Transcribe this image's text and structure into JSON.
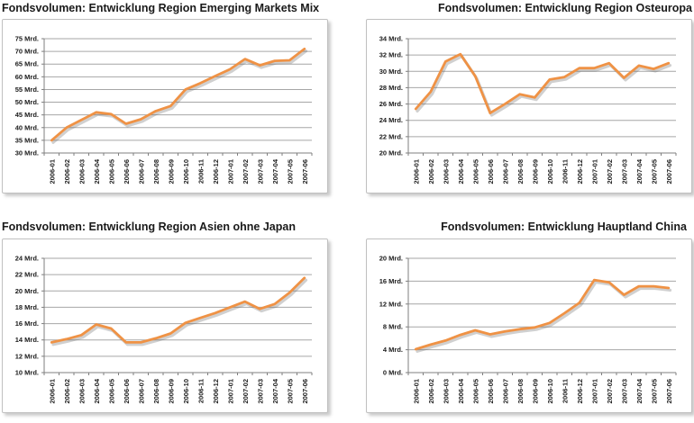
{
  "styles": {
    "background": "#FFFFFF",
    "line_color": "#EF9245",
    "line_shadow": "rgba(100,100,100,0.30)",
    "grid_color": "#A6A6A6",
    "axis_color": "#7F7F7F",
    "text_color": "#1A1A1A",
    "box_border": "#C0C0C0"
  },
  "chart_data": [
    {
      "type": "line",
      "title": "Fondsvolumen: Entwicklung Region Emerging Markets Mix",
      "title_align": "left",
      "x": [
        "2006-01",
        "2006-02",
        "2006-03",
        "2006-04",
        "2006-05",
        "2006-06",
        "2006-07",
        "2006-08",
        "2006-09",
        "2006-10",
        "2006-11",
        "2006-12",
        "2007-01",
        "2007-02",
        "2007-03",
        "2007-04",
        "2007-05",
        "2007-06"
      ],
      "values": [
        35,
        40,
        43,
        46,
        45.3,
        41.5,
        43.3,
        46.5,
        48.5,
        55,
        57.5,
        60.3,
        63,
        67,
        64.5,
        66.3,
        66.5,
        71
      ],
      "ylim": [
        30,
        75
      ],
      "yticks": [
        30,
        35,
        40,
        45,
        50,
        55,
        60,
        65,
        70,
        75
      ],
      "unit": "Mrd.",
      "grid": true,
      "legend": false
    },
    {
      "type": "line",
      "title": "Fondsvolumen: Entwicklung Region Osteuropa",
      "title_align": "right",
      "x": [
        "2006-01",
        "2006-02",
        "2006-03",
        "2006-04",
        "2006-05",
        "2006-06",
        "2006-07",
        "2006-08",
        "2006-09",
        "2006-10",
        "2006-11",
        "2006-12",
        "2007-01",
        "2007-02",
        "2007-03",
        "2007-04",
        "2007-05",
        "2007-06"
      ],
      "values": [
        25.4,
        27.5,
        31.2,
        32.1,
        29.4,
        24.9,
        26,
        27.2,
        26.8,
        29,
        29.3,
        30.4,
        30.4,
        31,
        29.2,
        30.7,
        30.3,
        31
      ],
      "ylim": [
        20,
        34
      ],
      "yticks": [
        20,
        22,
        24,
        26,
        28,
        30,
        32,
        34
      ],
      "unit": "Mrd.",
      "grid": true,
      "legend": false
    },
    {
      "type": "line",
      "title": "Fondsvolumen: Entwicklung Region Asien ohne Japan",
      "title_align": "left",
      "x": [
        "2006-01",
        "2006-02",
        "2006-03",
        "2006-04",
        "2006-05",
        "2006-06",
        "2006-07",
        "2006-08",
        "2006-09",
        "2006-10",
        "2006-11",
        "2006-12",
        "2007-01",
        "2007-02",
        "2007-03",
        "2007-04",
        "2007-05",
        "2007-06"
      ],
      "values": [
        13.7,
        14.1,
        14.6,
        15.9,
        15.4,
        13.7,
        13.7,
        14.2,
        14.8,
        16.1,
        16.7,
        17.3,
        18,
        18.7,
        17.8,
        18.4,
        19.8,
        21.6
      ],
      "ylim": [
        10,
        24
      ],
      "yticks": [
        10,
        12,
        14,
        16,
        18,
        20,
        22,
        24
      ],
      "unit": "Mrd.",
      "grid": true,
      "legend": false
    },
    {
      "type": "line",
      "title": "Fondsvolumen: Entwicklung Hauptland China",
      "title_align": "right",
      "x": [
        "2006-01",
        "2006-02",
        "2006-03",
        "2006-04",
        "2006-05",
        "2006-06",
        "2006-07",
        "2006-08",
        "2006-09",
        "2006-10",
        "2006-11",
        "2006-12",
        "2007-01",
        "2007-02",
        "2007-03",
        "2007-04",
        "2007-05",
        "2007-06"
      ],
      "values": [
        4.1,
        4.9,
        5.6,
        6.6,
        7.4,
        6.7,
        7.2,
        7.6,
        7.9,
        8.7,
        10.4,
        12.2,
        16.2,
        15.8,
        13.6,
        15.1,
        15.1,
        14.8
      ],
      "ylim": [
        0,
        20
      ],
      "yticks": [
        0,
        4,
        8,
        12,
        16,
        20
      ],
      "unit": "Mrd.",
      "grid": true,
      "legend": false
    }
  ]
}
